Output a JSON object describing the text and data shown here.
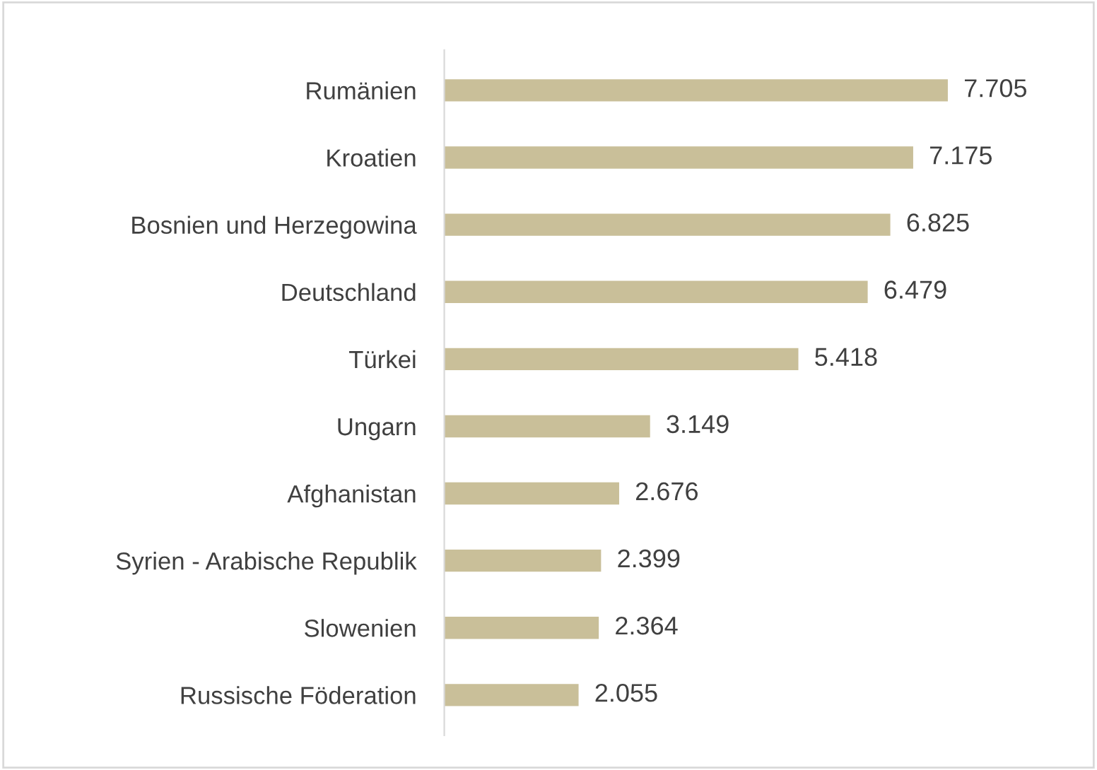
{
  "chart_data": {
    "type": "bar",
    "orientation": "horizontal",
    "categories": [
      "Rumänien",
      "Kroatien",
      "Bosnien und Herzegowina",
      "Deutschland",
      "Türkei",
      "Ungarn",
      "Afghanistan",
      "Syrien - Arabische Republik",
      "Slowenien",
      "Russische Föderation"
    ],
    "values": [
      7705,
      7175,
      6825,
      6479,
      5418,
      3149,
      2676,
      2399,
      2364,
      2055
    ],
    "value_labels": [
      "7.705",
      "7.175",
      "6.825",
      "6.479",
      "5.418",
      "3.149",
      "2.676",
      "2.399",
      "2.364",
      "2.055"
    ],
    "color": "#c9bf99",
    "grid": false,
    "legend": false
  }
}
